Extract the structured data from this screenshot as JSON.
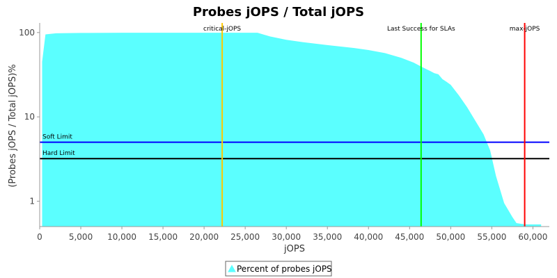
{
  "chart_data": {
    "type": "area",
    "title": "Probes jOPS / Total jOPS",
    "xlabel": "jOPS",
    "ylabel": "(Probes jOPS / Total jOPS)%",
    "y_scale": "log",
    "xlim": [
      0,
      62000
    ],
    "ylim": [
      0.5,
      130
    ],
    "x_ticks": [
      0,
      5000,
      10000,
      15000,
      20000,
      25000,
      30000,
      35000,
      40000,
      45000,
      50000,
      55000,
      60000
    ],
    "x_tick_labels": [
      "0",
      "5,000",
      "10,000",
      "15,000",
      "20,000",
      "25,000",
      "30,000",
      "35,000",
      "40,000",
      "45,000",
      "50,000",
      "55,000",
      "60,000"
    ],
    "y_ticks": [
      1,
      10,
      100
    ],
    "y_tick_labels": [
      "1",
      "10",
      "100"
    ],
    "series": [
      {
        "name": "Percent of probes jOPS",
        "color": "#5bffff",
        "x": [
          300,
          700,
          2000,
          5000,
          10000,
          15000,
          20000,
          26500,
          28000,
          30000,
          32000,
          35000,
          38000,
          40000,
          42000,
          44000,
          45500,
          46500,
          47500,
          48000,
          48500,
          49000,
          49500,
          50000,
          51000,
          52000,
          53000,
          54000,
          54800,
          55500,
          56500,
          57500,
          58000,
          59000,
          60000,
          61000
        ],
        "y": [
          45,
          95,
          98,
          99,
          99.5,
          99.5,
          99.5,
          99.5,
          90,
          82,
          77,
          71,
          66,
          62,
          57,
          50,
          44,
          39,
          35,
          33,
          32,
          28,
          26,
          24,
          18,
          13,
          9,
          6.2,
          4,
          2,
          0.95,
          0.65,
          0.55,
          0.53,
          0.53,
          0.53
        ]
      }
    ],
    "vertical_markers": [
      {
        "label": "critical-jOPS",
        "x": 22200,
        "color": "#ffc800"
      },
      {
        "label": "Last Success for SLAs",
        "x": 46400,
        "color": "#00ff00"
      },
      {
        "label": "max-jOPS",
        "x": 59000,
        "color": "#ff0000"
      }
    ],
    "horizontal_markers": [
      {
        "label": "Soft Limit",
        "y": 5,
        "color": "#0000ff"
      },
      {
        "label": "Hard Limit",
        "y": 3.2,
        "color": "#000000"
      }
    ],
    "grid": false,
    "legend_position": "bottom"
  }
}
